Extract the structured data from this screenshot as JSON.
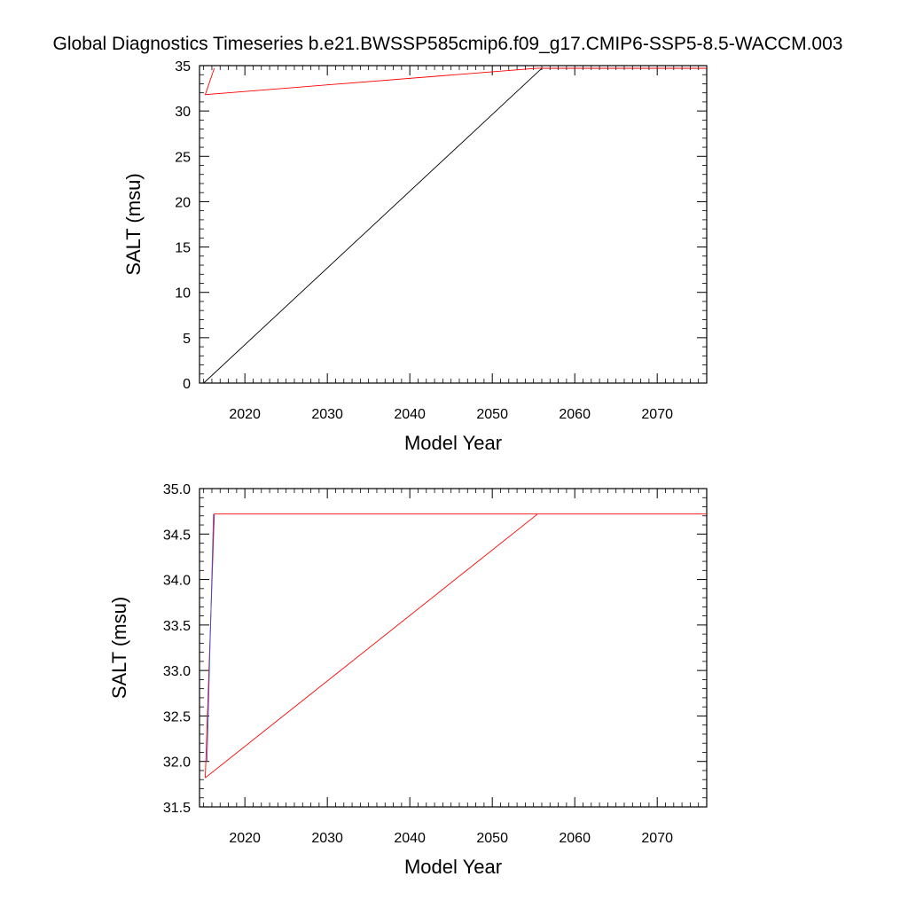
{
  "chart_data": {
    "title": "Global Diagnostics Timeseries b.e21.BWSSP585cmip6.f09_g17.CMIP6-SSP5-8.5-WACCM.003",
    "panels": [
      {
        "type": "line",
        "xlabel": "Model Year",
        "ylabel": "SALT (msu)",
        "xlim": [
          2014.5,
          2076
        ],
        "ylim": [
          0,
          35
        ],
        "xticks": [
          2020,
          2030,
          2040,
          2050,
          2060,
          2070
        ],
        "yticks": [
          0,
          5,
          10,
          15,
          20,
          25,
          30,
          35
        ],
        "ytick_labels": [
          "0",
          "5",
          "10",
          "15",
          "20",
          "25",
          "30",
          "35"
        ],
        "grid": false,
        "series": [
          {
            "name": "black",
            "color": "#000000",
            "x": [
              2015,
              2056,
              2076
            ],
            "y": [
              0.0,
              34.7,
              34.7
            ]
          },
          {
            "name": "red",
            "color": "#ff0000",
            "x": [
              2016.3,
              2015.2,
              2055.5,
              2076
            ],
            "y": [
              34.72,
              31.8,
              34.72,
              34.72
            ]
          }
        ]
      },
      {
        "type": "line",
        "xlabel": "Model Year",
        "ylabel": "SALT (msu)",
        "xlim": [
          2014.5,
          2076
        ],
        "ylim": [
          31.5,
          35.0
        ],
        "xticks": [
          2020,
          2030,
          2040,
          2050,
          2060,
          2070
        ],
        "yticks": [
          31.5,
          32.0,
          32.5,
          33.0,
          33.5,
          34.0,
          34.5,
          35.0
        ],
        "ytick_labels": [
          "31.5",
          "32.0",
          "32.5",
          "33.0",
          "33.5",
          "34.0",
          "34.5",
          "35.0"
        ],
        "grid": false,
        "series": [
          {
            "name": "red",
            "color": "#ff0000",
            "x": [
              2015.2,
              2016.3,
              2076
            ],
            "y": [
              31.82,
              34.72,
              34.72
            ]
          },
          {
            "name": "red-ramp",
            "color": "#ff0000",
            "x": [
              2015.2,
              2055.5
            ],
            "y": [
              31.82,
              34.72
            ]
          },
          {
            "name": "blue",
            "color": "#3355dd",
            "x": [
              2015.4,
              2016.2
            ],
            "y": [
              32.0,
              34.72
            ]
          }
        ]
      }
    ]
  }
}
